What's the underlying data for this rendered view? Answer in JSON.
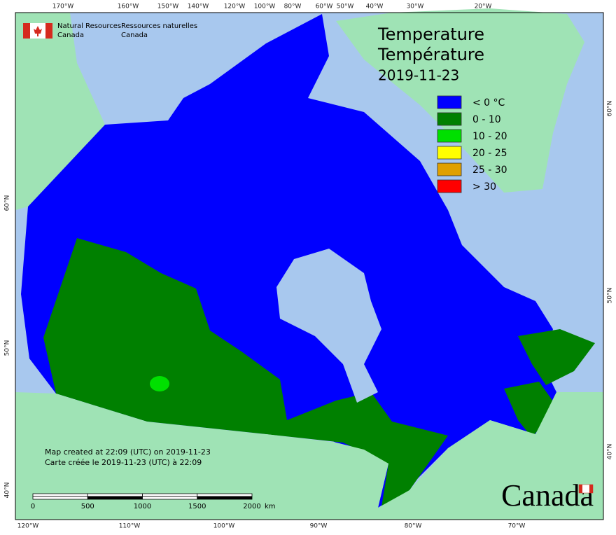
{
  "header": {
    "agency_en": [
      "Natural Resources",
      "Canada"
    ],
    "agency_fr": [
      "Ressources naturelles",
      "Canada"
    ]
  },
  "title": {
    "en": "Temperature",
    "fr": "Température",
    "date": "2019-11-23"
  },
  "legend": [
    {
      "label": "< 0 °C",
      "color": "#0000ff"
    },
    {
      "label": "0 - 10",
      "color": "#008000"
    },
    {
      "label": "10 - 20",
      "color": "#00e000"
    },
    {
      "label": "20 - 25",
      "color": "#ffff00"
    },
    {
      "label": "25 - 30",
      "color": "#e0a000"
    },
    {
      "label": "> 30",
      "color": "#ff0000"
    }
  ],
  "graticule": {
    "top": [
      "170°W",
      "160°W",
      "150°W",
      "140°W",
      "120°W",
      "100°W",
      "80°W",
      "60°W",
      "50°W",
      "40°W",
      "30°W",
      "20°W"
    ],
    "bottom": [
      "120°W",
      "110°W",
      "100°W",
      "90°W",
      "80°W",
      "70°W"
    ],
    "left": [
      "60°N",
      "50°N",
      "40°N"
    ],
    "right": [
      "60°N",
      "50°N",
      "40°N"
    ]
  },
  "credits": [
    "Map created at 22:09 (UTC) on 2019-11-23",
    "Carte créée le 2019-11-23 (UTC) à 22:09"
  ],
  "scale_bar": {
    "labels": [
      "0",
      "500",
      "1000",
      "1500",
      "2000"
    ],
    "unit": "km"
  },
  "wordmark": "Canada"
}
